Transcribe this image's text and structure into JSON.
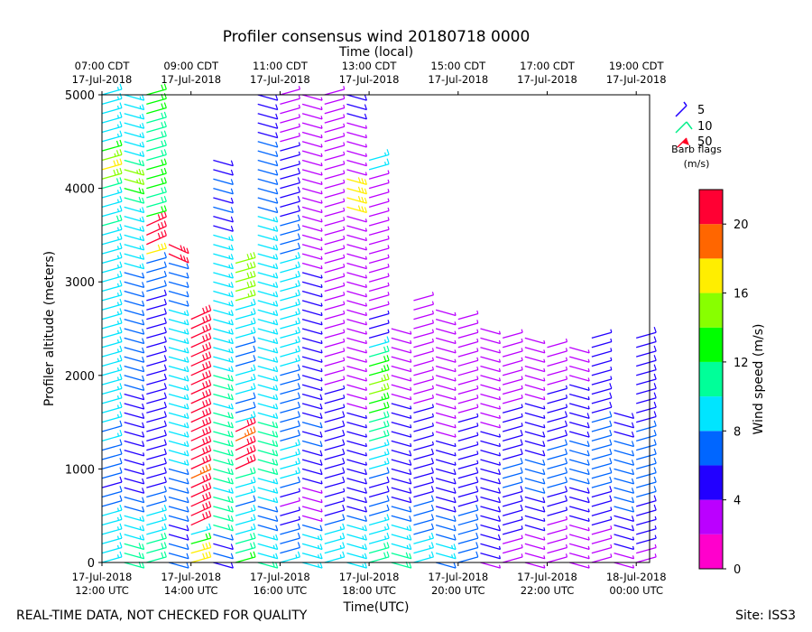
{
  "chart_data": {
    "type": "wind-barb-profile",
    "title": "Profiler consensus wind 20180718 0000",
    "top_axis_label": "Time (local)",
    "xlabel": "Time(UTC)",
    "ylabel": "Profiler altitude (meters)",
    "x_range_hours_utc": [
      12,
      24.3
    ],
    "ylim": [
      0,
      5000
    ],
    "y_ticks": [
      0,
      1000,
      2000,
      3000,
      4000,
      5000
    ],
    "x_ticks": [
      {
        "hour": 12,
        "line1": "17-Jul-2018",
        "line2": "12:00 UTC"
      },
      {
        "hour": 14,
        "line1": "17-Jul-2018",
        "line2": "14:00 UTC"
      },
      {
        "hour": 16,
        "line1": "17-Jul-2018",
        "line2": "16:00 UTC"
      },
      {
        "hour": 18,
        "line1": "17-Jul-2018",
        "line2": "18:00 UTC"
      },
      {
        "hour": 20,
        "line1": "17-Jul-2018",
        "line2": "20:00 UTC"
      },
      {
        "hour": 22,
        "line1": "17-Jul-2018",
        "line2": "22:00 UTC"
      },
      {
        "hour": 24,
        "line1": "18-Jul-2018",
        "line2": "00:00 UTC"
      }
    ],
    "top_ticks": [
      {
        "hour": 12,
        "line1": "07:00 CDT",
        "line2": "17-Jul-2018"
      },
      {
        "hour": 14,
        "line1": "09:00 CDT",
        "line2": "17-Jul-2018"
      },
      {
        "hour": 16,
        "line1": "11:00 CDT",
        "line2": "17-Jul-2018"
      },
      {
        "hour": 18,
        "line1": "13:00 CDT",
        "line2": "17-Jul-2018"
      },
      {
        "hour": 20,
        "line1": "15:00 CDT",
        "line2": "17-Jul-2018"
      },
      {
        "hour": 22,
        "line1": "17:00 CDT",
        "line2": "17-Jul-2018"
      },
      {
        "hour": 24,
        "line1": "19:00 CDT",
        "line2": "17-Jul-2018"
      }
    ],
    "barb_legend": {
      "entries": [
        {
          "label": "5",
          "color": "#2200ff"
        },
        {
          "label": "10",
          "color": "#00ee88"
        },
        {
          "label": "50",
          "color": "#ff0022"
        }
      ],
      "title_line1": "Barb flags",
      "title_line2": "(m/s)"
    },
    "colorbar": {
      "label": "Wind speed (m/s)",
      "range": [
        0,
        22
      ],
      "ticks": [
        0,
        4,
        8,
        12,
        16,
        20
      ],
      "bins": [
        {
          "from": 0,
          "to": 2,
          "color": "#ff00cc"
        },
        {
          "from": 2,
          "to": 4,
          "color": "#bb00ff"
        },
        {
          "from": 4,
          "to": 6,
          "color": "#2200ff"
        },
        {
          "from": 6,
          "to": 8,
          "color": "#0066ff"
        },
        {
          "from": 8,
          "to": 10,
          "color": "#00e5ff"
        },
        {
          "from": 10,
          "to": 12,
          "color": "#00ff99"
        },
        {
          "from": 12,
          "to": 14,
          "color": "#00ff00"
        },
        {
          "from": 14,
          "to": 16,
          "color": "#88ff00"
        },
        {
          "from": 16,
          "to": 18,
          "color": "#ffee00"
        },
        {
          "from": 18,
          "to": 20,
          "color": "#ff6600"
        },
        {
          "from": 20,
          "to": 22,
          "color": "#ff0033"
        }
      ]
    },
    "profiles_description_note": "",
    "profiles": [
      {
        "hour": 12.0,
        "top": 5000,
        "speeds": [
          9,
          9,
          8,
          9,
          8,
          8,
          7,
          6,
          5,
          6,
          6,
          6,
          7,
          8,
          7,
          8,
          9,
          9,
          9,
          9,
          9,
          8,
          8,
          8,
          9,
          9,
          8,
          8,
          9,
          9,
          9,
          8,
          8,
          9,
          9,
          9,
          10,
          9,
          9,
          9,
          10,
          15,
          16,
          14,
          12,
          9,
          9,
          9,
          9,
          9,
          9
        ]
      },
      {
        "hour": 12.5,
        "top": 5000,
        "speeds": [
          10,
          10,
          10,
          9,
          9,
          8,
          7,
          6,
          5,
          5,
          5,
          4,
          4,
          5,
          5,
          5,
          5,
          5,
          5,
          6,
          6,
          6,
          6,
          6,
          6,
          6,
          6,
          7,
          7,
          6,
          6,
          7,
          8,
          8,
          8,
          8,
          9,
          9,
          9,
          10,
          12,
          14,
          14,
          10,
          9,
          9,
          9,
          9,
          9,
          9,
          9
        ]
      },
      {
        "hour": 13.0,
        "top": 5000,
        "speeds": [
          11,
          11,
          10,
          9,
          8,
          8,
          7,
          6,
          5,
          5,
          5,
          5,
          5,
          5,
          5,
          5,
          5,
          5,
          5,
          5,
          5,
          5,
          5,
          5,
          5,
          5,
          5,
          5,
          5,
          6,
          6,
          6,
          7,
          16,
          20,
          21,
          20,
          12,
          11,
          11,
          12,
          12,
          12,
          11,
          11,
          11,
          11,
          11,
          12,
          12,
          12
        ]
      },
      {
        "hour": 13.5,
        "top": 3400,
        "speeds": [
          7,
          6,
          6,
          5,
          5,
          6,
          6,
          7,
          7,
          7,
          7,
          8,
          8,
          8,
          8,
          9,
          9,
          9,
          9,
          9,
          9,
          9,
          9,
          9,
          8,
          8,
          8,
          8,
          7,
          7,
          7,
          6,
          6,
          20,
          21
        ]
      },
      {
        "hour": 14.0,
        "top": 2600,
        "speeds": [
          17,
          16,
          12,
          8,
          20,
          21,
          20,
          20,
          20,
          19,
          21,
          22,
          21,
          21,
          21,
          21,
          21,
          21,
          20,
          21,
          21,
          21,
          20,
          21,
          20,
          21,
          21
        ]
      },
      {
        "hour": 14.5,
        "top": 4300,
        "speeds": [
          5,
          6,
          5,
          6,
          10,
          11,
          10,
          10,
          9,
          11,
          11,
          10,
          10,
          10,
          10,
          10,
          10,
          9,
          10,
          10,
          10,
          9,
          9,
          8,
          8,
          8,
          8,
          8,
          8,
          8,
          8,
          9,
          9,
          8,
          8,
          9,
          5,
          5,
          6,
          5,
          6,
          6,
          5,
          5
        ]
      },
      {
        "hour": 15.0,
        "top": 3200,
        "speeds": [
          12,
          11,
          10,
          8,
          9,
          8,
          7,
          8,
          9,
          10,
          20,
          21,
          20,
          19,
          20,
          8,
          6,
          7,
          8,
          8,
          8,
          7,
          7,
          7,
          8,
          8,
          8,
          9,
          14,
          15,
          15,
          15,
          15
        ]
      },
      {
        "hour": 15.5,
        "top": 5000,
        "speeds": [
          10,
          9,
          8,
          8,
          6,
          6,
          6,
          9,
          9,
          9,
          10,
          10,
          10,
          10,
          10,
          10,
          9,
          9,
          9,
          9,
          9,
          9,
          9,
          9,
          9,
          9,
          9,
          9,
          9,
          9,
          9,
          9,
          9,
          9,
          9,
          9,
          8,
          8,
          7,
          7,
          7,
          7,
          6,
          6,
          6,
          6,
          5,
          5,
          5,
          5,
          5
        ]
      },
      {
        "hour": 16.0,
        "top": 5000,
        "speeds": [
          8,
          7,
          7,
          7,
          4,
          4,
          3,
          4,
          6,
          8,
          9,
          9,
          8,
          7,
          6,
          6,
          6,
          7,
          7,
          7,
          7,
          8,
          8,
          8,
          8,
          8,
          8,
          8,
          8,
          8,
          8,
          8,
          8,
          7,
          6,
          6,
          6,
          5,
          5,
          5,
          5,
          5,
          4,
          4,
          4,
          3,
          3,
          3,
          3,
          3,
          3
        ]
      },
      {
        "hour": 16.5,
        "top": 5000,
        "speeds": [
          9,
          9,
          8,
          8,
          7,
          3,
          2,
          2,
          3,
          4,
          5,
          5,
          5,
          6,
          5,
          6,
          5,
          5,
          5,
          4,
          4,
          4,
          4,
          4,
          4,
          4,
          4,
          4,
          4,
          4,
          4,
          4,
          3,
          3,
          3,
          3,
          2,
          2,
          2,
          2,
          2,
          2,
          2,
          2,
          3,
          3,
          3,
          3,
          3,
          3,
          3
        ]
      },
      {
        "hour": 17.0,
        "top": 5000,
        "speeds": [
          9,
          9,
          8,
          8,
          7,
          5,
          4,
          4,
          5,
          5,
          5,
          5,
          5,
          5,
          5,
          5,
          4,
          4,
          4,
          3,
          3,
          3,
          3,
          3,
          2,
          2,
          2,
          2,
          2,
          2,
          2,
          2,
          2,
          2,
          2,
          2,
          2,
          2,
          2,
          2,
          2,
          2,
          2,
          2,
          3,
          3,
          3,
          3,
          3,
          3,
          3
        ]
      },
      {
        "hour": 17.5,
        "top": 5000,
        "speeds": [
          9,
          9,
          9,
          8,
          8,
          6,
          5,
          5,
          5,
          5,
          5,
          4,
          4,
          4,
          4,
          4,
          4,
          3,
          3,
          3,
          3,
          3,
          3,
          3,
          2,
          2,
          2,
          2,
          2,
          2,
          2,
          2,
          2,
          2,
          2,
          2,
          2,
          2,
          16,
          16,
          16,
          16,
          3,
          3,
          3,
          3,
          3,
          3,
          5,
          5,
          5
        ]
      },
      {
        "hour": 18.0,
        "top": 4300,
        "speeds": [
          10,
          10,
          9,
          9,
          8,
          7,
          6,
          5,
          5,
          6,
          8,
          9,
          9,
          10,
          10,
          11,
          12,
          13,
          14,
          14,
          13,
          12,
          10,
          9,
          4,
          4,
          4,
          3,
          3,
          3,
          3,
          3,
          3,
          2,
          2,
          2,
          3,
          3,
          3,
          3,
          3,
          3,
          8,
          8
        ]
      },
      {
        "hour": 18.5,
        "top": 2500,
        "speeds": [
          10,
          10,
          9,
          8,
          8,
          7,
          6,
          5,
          5,
          5,
          5,
          5,
          5,
          4,
          4,
          4,
          4,
          4,
          3,
          3,
          3,
          2,
          2,
          2,
          2,
          2
        ]
      },
      {
        "hour": 19.0,
        "top": 2800,
        "speeds": [
          8,
          8,
          8,
          7,
          7,
          6,
          6,
          5,
          5,
          5,
          5,
          5,
          4,
          4,
          4,
          4,
          4,
          3,
          3,
          3,
          2,
          2,
          2,
          2,
          2,
          2,
          2,
          2,
          2
        ]
      },
      {
        "hour": 19.5,
        "top": 2700,
        "speeds": [
          7,
          8,
          8,
          7,
          6,
          6,
          5,
          5,
          5,
          5,
          5,
          4,
          4,
          4,
          3,
          3,
          3,
          3,
          3,
          3,
          2,
          2,
          2,
          2,
          2,
          2,
          2,
          2
        ]
      },
      {
        "hour": 20.0,
        "top": 2600,
        "speeds": [
          6,
          7,
          7,
          6,
          6,
          6,
          5,
          5,
          5,
          5,
          4,
          4,
          4,
          4,
          4,
          4,
          3,
          3,
          3,
          3,
          2,
          2,
          2,
          2,
          2,
          2,
          2
        ]
      },
      {
        "hour": 20.5,
        "top": 2500,
        "speeds": [
          3,
          4,
          4,
          5,
          5,
          5,
          5,
          5,
          5,
          5,
          5,
          4,
          4,
          4,
          4,
          3,
          3,
          3,
          3,
          3,
          2,
          2,
          2,
          2,
          2,
          2
        ]
      },
      {
        "hour": 21.0,
        "top": 2400,
        "speeds": [
          2,
          3,
          3,
          4,
          4,
          5,
          5,
          5,
          6,
          6,
          6,
          5,
          5,
          5,
          4,
          4,
          4,
          3,
          3,
          3,
          3,
          2,
          2,
          2,
          2
        ]
      },
      {
        "hour": 21.5,
        "top": 2400,
        "speeds": [
          2,
          2,
          3,
          3,
          4,
          4,
          5,
          5,
          6,
          6,
          6,
          6,
          5,
          5,
          5,
          4,
          4,
          4,
          3,
          3,
          3,
          3,
          2,
          2,
          2
        ]
      },
      {
        "hour": 22.0,
        "top": 2300,
        "speeds": [
          2,
          2,
          2,
          3,
          3,
          4,
          5,
          5,
          6,
          6,
          6,
          6,
          6,
          5,
          5,
          5,
          4,
          4,
          4,
          3,
          3,
          3,
          2,
          2
        ]
      },
      {
        "hour": 22.5,
        "top": 2300,
        "speeds": [
          2,
          2,
          2,
          3,
          3,
          4,
          4,
          5,
          5,
          6,
          6,
          6,
          6,
          6,
          5,
          5,
          5,
          4,
          4,
          4,
          3,
          3,
          3,
          3
        ]
      },
      {
        "hour": 23.0,
        "top": 2400,
        "speeds": [
          2,
          2,
          3,
          3,
          4,
          4,
          5,
          5,
          6,
          6,
          7,
          7,
          7,
          6,
          6,
          6,
          5,
          5,
          5,
          4,
          4,
          4,
          4,
          4,
          4
        ]
      },
      {
        "hour": 23.5,
        "top": 1600,
        "speeds": [
          3,
          3,
          4,
          4,
          5,
          5,
          6,
          6,
          7,
          7,
          7,
          6,
          6,
          6,
          5,
          5,
          5
        ]
      },
      {
        "hour": 24.0,
        "top": 2400,
        "speeds": [
          3,
          3,
          4,
          4,
          4,
          5,
          5,
          6,
          6,
          7,
          7,
          7,
          6,
          6,
          6,
          5,
          5,
          5,
          5,
          5,
          5,
          5,
          5,
          5,
          5
        ]
      }
    ]
  },
  "footer": {
    "left_note": "REAL-TIME DATA, NOT CHECKED FOR QUALITY",
    "site": "Site: ISS3"
  }
}
